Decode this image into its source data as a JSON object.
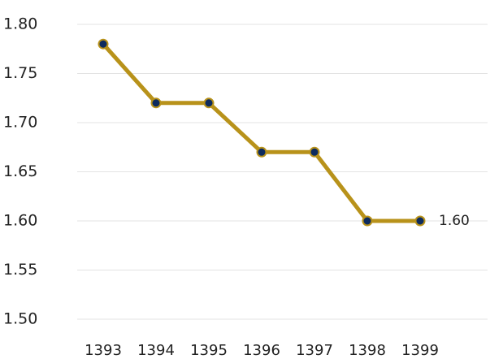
{
  "chart_data": {
    "type": "line",
    "categories": [
      "1393",
      "1394",
      "1395",
      "1396",
      "1397",
      "1398",
      "1399"
    ],
    "series": [
      {
        "color": "#b8921a",
        "marker_color": "#0d2b5e",
        "values": [
          1.78,
          1.72,
          1.72,
          1.67,
          1.67,
          1.6,
          1.6
        ],
        "value_labels": [
          null,
          null,
          null,
          null,
          null,
          null,
          "1.60"
        ]
      }
    ],
    "ylim": [
      1.5,
      1.8
    ],
    "yticks": [
      {
        "value": 1.5,
        "label": "1.50"
      },
      {
        "value": 1.55,
        "label": "1.55"
      },
      {
        "value": 1.6,
        "label": "1.60"
      },
      {
        "value": 1.65,
        "label": "1.65"
      },
      {
        "value": 1.7,
        "label": "1.70"
      },
      {
        "value": 1.75,
        "label": "1.75"
      },
      {
        "value": 1.8,
        "label": "1.80"
      }
    ],
    "grid": true
  }
}
